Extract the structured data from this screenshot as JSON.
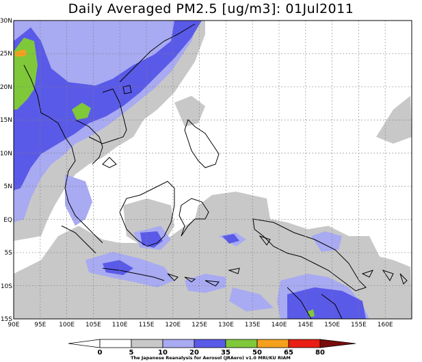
{
  "title": "Daily Averaged PM2.5 [ug/m3]: 01Jul2011",
  "credit": "The Japanese Reanalysis for Aerosol (JRAero) v1.0 MRI/KU RIAM",
  "map": {
    "lon_labels": [
      "90E",
      "95E",
      "100E",
      "105E",
      "110E",
      "115E",
      "120E",
      "125E",
      "130E",
      "135E",
      "140E",
      "145E",
      "150E",
      "155E",
      "160E"
    ],
    "lat_labels": [
      "30N",
      "25N",
      "20N",
      "15N",
      "10N",
      "5N",
      "EQ",
      "5S",
      "10S",
      "15S"
    ]
  },
  "colorbar": {
    "levels": [
      "0",
      "5",
      "10",
      "20",
      "35",
      "50",
      "65",
      "80"
    ],
    "colors": [
      "#ffffff",
      "#ffffff",
      "#c8c8c8",
      "#a8aaf2",
      "#5a5ae8",
      "#7ec83a",
      "#f5a01e",
      "#e81e14",
      "#7a0c0c"
    ]
  },
  "palette": {
    "lt5": "#ffffff",
    "b5_10": "#c8c8c8",
    "b10_20": "#a8aaf2",
    "b20_35": "#5a5ae8",
    "b35_50": "#7ec83a",
    "b50_65": "#f5a01e"
  }
}
